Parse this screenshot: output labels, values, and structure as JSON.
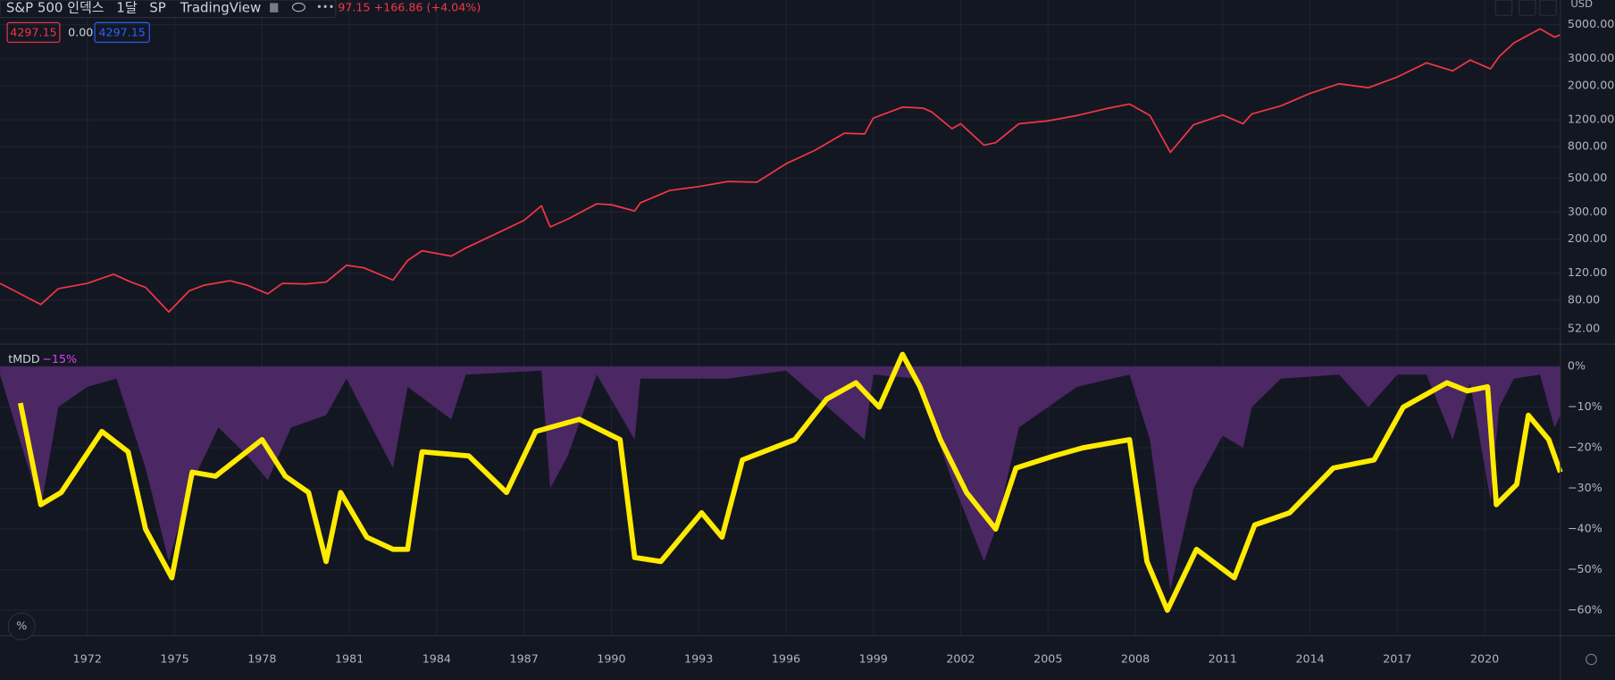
{
  "header": {
    "symbol": "S&P 500 인덱스",
    "interval": "1달",
    "exchange": "SP",
    "source": "TradingView",
    "change": "97.15 +166.86 (+4.04%)",
    "badges": [
      "4297.15",
      "0.00",
      "4297.15"
    ],
    "currency": "USD",
    "indicator": "tMDD",
    "indicator_param": "−15%",
    "percent_button": "%"
  },
  "chart_data": [
    {
      "type": "line",
      "log_scale": true,
      "color": "#f23645",
      "xlim": [
        1969,
        2022.6
      ],
      "ylim": [
        42,
        7244
      ],
      "yticks": [
        {
          "value": 52,
          "label": "52.00"
        },
        {
          "value": 80,
          "label": "80.00"
        },
        {
          "value": 120,
          "label": "120.00"
        },
        {
          "value": 200,
          "label": "200.00"
        },
        {
          "value": 300,
          "label": "300.00"
        },
        {
          "value": 500,
          "label": "500.00"
        },
        {
          "value": 800,
          "label": "800.00"
        },
        {
          "value": 1200,
          "label": "1200.00"
        },
        {
          "value": 2000,
          "label": "2000.00"
        },
        {
          "value": 3000,
          "label": "3000.00"
        },
        {
          "value": 5000,
          "label": "5000.00"
        }
      ],
      "grid": true,
      "x": [
        1969.0,
        1970.4,
        1971.0,
        1972.0,
        1972.9,
        1973.5,
        1974.0,
        1974.8,
        1975.5,
        1976.0,
        1976.9,
        1977.5,
        1978.2,
        1978.7,
        1979.5,
        1980.2,
        1980.9,
        1981.5,
        1982.5,
        1983.0,
        1983.5,
        1984.5,
        1985.0,
        1986.0,
        1987.0,
        1987.6,
        1987.9,
        1988.5,
        1989.5,
        1990.0,
        1990.8,
        1991.0,
        1992.0,
        1993.0,
        1994.0,
        1995.0,
        1996.0,
        1997.0,
        1998.0,
        1998.7,
        1999.0,
        2000.0,
        2000.7,
        2001.0,
        2001.7,
        2002.0,
        2002.8,
        2003.2,
        2004.0,
        2005.0,
        2006.0,
        2007.0,
        2007.8,
        2008.5,
        2009.2,
        2010.0,
        2011.0,
        2011.7,
        2012.0,
        2013.0,
        2014.0,
        2015.0,
        2016.0,
        2017.0,
        2018.0,
        2018.9,
        2019.5,
        2020.2,
        2020.5,
        2021.0,
        2021.9,
        2022.4,
        2022.6
      ],
      "values": [
        103,
        75,
        95,
        103,
        118,
        105,
        97,
        67,
        92,
        100,
        107,
        100,
        88,
        103,
        102,
        105,
        135,
        130,
        108,
        145,
        168,
        155,
        175,
        215,
        265,
        330,
        240,
        270,
        340,
        335,
        305,
        345,
        415,
        440,
        475,
        470,
        620,
        760,
        980,
        970,
        1230,
        1450,
        1430,
        1350,
        1050,
        1130,
        820,
        850,
        1130,
        1180,
        1280,
        1420,
        1520,
        1280,
        735,
        1115,
        1290,
        1130,
        1310,
        1480,
        1780,
        2060,
        1940,
        2280,
        2820,
        2500,
        2940,
        2580,
        3100,
        3800,
        4700,
        4150,
        4297
      ]
    },
    {
      "type": "area-line",
      "xlim": [
        1969,
        2022.6
      ],
      "ylim": [
        -66,
        5
      ],
      "xticks": [
        1972,
        1975,
        1978,
        1981,
        1984,
        1987,
        1990,
        1993,
        1996,
        1999,
        2002,
        2005,
        2008,
        2011,
        2014,
        2017,
        2020
      ],
      "yticks": [
        {
          "value": 0,
          "label": "0%"
        },
        {
          "value": -10,
          "label": "−10%"
        },
        {
          "value": -20,
          "label": "−20%"
        },
        {
          "value": -30,
          "label": "−30%"
        },
        {
          "value": -40,
          "label": "−40%"
        },
        {
          "value": -50,
          "label": "−50%"
        },
        {
          "value": -60,
          "label": "−60%"
        }
      ],
      "grid": true,
      "series": [
        {
          "kind": "area",
          "color": "#4b2763",
          "x": [
            1969,
            1970.4,
            1971,
            1972,
            1973,
            1974,
            1974.8,
            1975.5,
            1976.5,
            1977.5,
            1978.2,
            1979,
            1980.2,
            1980.9,
            1982.5,
            1983,
            1984.5,
            1985,
            1987.6,
            1987.9,
            1988.5,
            1989.5,
            1990.8,
            1991,
            1994,
            1996,
            1998.7,
            1999,
            2000.5,
            2001.7,
            2002.8,
            2003.2,
            2004,
            2005,
            2006,
            2007.8,
            2008.5,
            2009.2,
            2010,
            2011,
            2011.7,
            2012,
            2013,
            2015,
            2016,
            2017,
            2018,
            2018.9,
            2019.5,
            2020.2,
            2020.5,
            2021,
            2021.9,
            2022.4,
            2022.6
          ],
          "values": [
            -2,
            -35,
            -10,
            -5,
            -3,
            -25,
            -48,
            -30,
            -15,
            -22,
            -28,
            -15,
            -12,
            -3,
            -25,
            -5,
            -13,
            -2,
            -1,
            -30,
            -22,
            -2,
            -18,
            -3,
            -3,
            -1,
            -18,
            -2,
            -3,
            -28,
            -48,
            -40,
            -15,
            -10,
            -5,
            -2,
            -18,
            -55,
            -30,
            -17,
            -20,
            -10,
            -3,
            -2,
            -10,
            -2,
            -2,
            -18,
            -4,
            -33,
            -10,
            -3,
            -2,
            -15,
            -12
          ]
        },
        {
          "kind": "line",
          "color": "#ffeb00",
          "x": [
            1969.7,
            1970.4,
            1971.1,
            1972.5,
            1973.4,
            1974.0,
            1974.9,
            1975.6,
            1976.4,
            1978.0,
            1978.8,
            1979.6,
            1980.2,
            1980.7,
            1981.6,
            1982.5,
            1983.0,
            1983.5,
            1985.1,
            1986.4,
            1987.4,
            1988.9,
            1990.3,
            1990.8,
            1991.7,
            1993.1,
            1993.8,
            1994.5,
            1996.3,
            1997.4,
            1998.4,
            1999.2,
            2000.0,
            2000.6,
            2001.3,
            2002.2,
            2003.2,
            2003.9,
            2005.2,
            2006.2,
            2007.8,
            2008.4,
            2009.1,
            2010.1,
            2011.4,
            2012.1,
            2013.3,
            2014.8,
            2016.2,
            2017.2,
            2018.7,
            2019.4,
            2020.1,
            2020.4,
            2021.1,
            2021.5,
            2022.2,
            2022.6
          ],
          "values": [
            -9,
            -34,
            -31,
            -16,
            -21,
            -40,
            -52,
            -26,
            -27,
            -18,
            -27,
            -31,
            -48,
            -31,
            -42,
            -45,
            -45,
            -21,
            -22,
            -31,
            -16,
            -13,
            -18,
            -47,
            -48,
            -36,
            -42,
            -23,
            -18,
            -8,
            -4,
            -10,
            3,
            -5,
            -18,
            -31,
            -40,
            -25,
            -22,
            -20,
            -18,
            -48,
            -60,
            -45,
            -52,
            -39,
            -36,
            -25,
            -23,
            -10,
            -4,
            -6,
            -5,
            -34,
            -29,
            -12,
            -18,
            -26
          ]
        }
      ]
    }
  ]
}
